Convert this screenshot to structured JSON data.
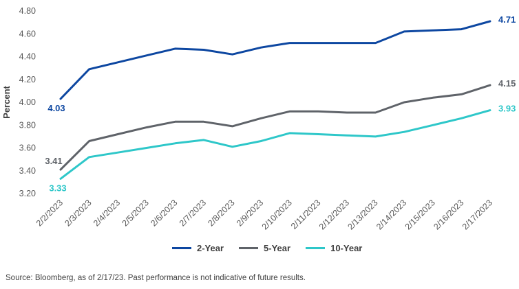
{
  "chart_data": {
    "type": "line",
    "ylabel": "Percent",
    "xlabel": "",
    "ylim": [
      3.2,
      4.8
    ],
    "yticks": [
      "3.20",
      "3.40",
      "3.60",
      "3.80",
      "4.00",
      "4.20",
      "4.40",
      "4.60",
      "4.80"
    ],
    "categories": [
      "2/2/2023",
      "2/3/2023",
      "2/4/2023",
      "2/5/2023",
      "2/6/2023",
      "2/7/2023",
      "2/8/2023",
      "2/9/2023",
      "2/10/2023",
      "2/11/2023",
      "2/12/2023",
      "2/13/2023",
      "2/14/2023",
      "2/15/2023",
      "2/16/2023",
      "2/17/2023"
    ],
    "grid": false,
    "legend_position": "bottom",
    "series": [
      {
        "name": "2-Year",
        "color": "#0d47a1",
        "values": [
          4.03,
          4.29,
          4.35,
          4.41,
          4.47,
          4.46,
          4.42,
          4.48,
          4.52,
          4.52,
          4.52,
          4.52,
          4.62,
          4.63,
          4.64,
          4.71
        ],
        "start_label": "4.03",
        "end_label": "4.71"
      },
      {
        "name": "5-Year",
        "color": "#5f6369",
        "values": [
          3.41,
          3.66,
          3.72,
          3.78,
          3.83,
          3.83,
          3.79,
          3.86,
          3.92,
          3.92,
          3.91,
          3.91,
          4.0,
          4.04,
          4.07,
          4.15
        ],
        "start_label": "3.41",
        "end_label": "4.15"
      },
      {
        "name": "10-Year",
        "color": "#2ec7c9",
        "values": [
          3.33,
          3.52,
          3.56,
          3.6,
          3.64,
          3.67,
          3.61,
          3.66,
          3.73,
          3.72,
          3.71,
          3.7,
          3.74,
          3.8,
          3.86,
          3.93
        ],
        "start_label": "3.33",
        "end_label": "3.93"
      }
    ]
  },
  "footer": {
    "source": "Source: Bloomberg, as of 2/17/23. Past performance is not indicative of future results."
  }
}
